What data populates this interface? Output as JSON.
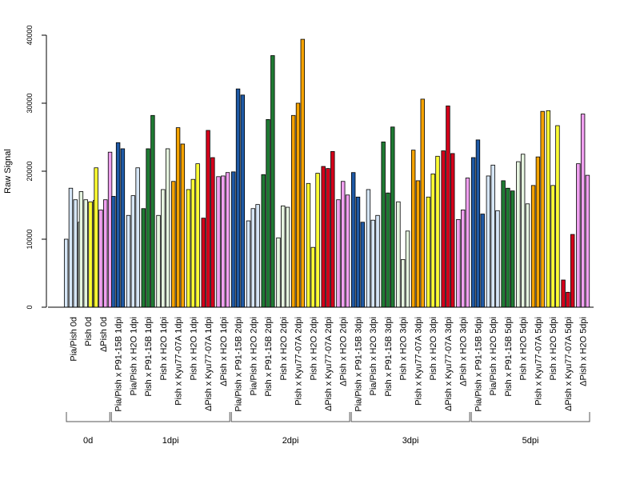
{
  "chart_data": {
    "type": "bar",
    "title": "",
    "xlabel": "",
    "ylabel": "Raw Signal",
    "ylim": [
      0,
      40000
    ],
    "y_ticks": [
      0,
      10000,
      20000,
      30000,
      40000
    ],
    "grid": false,
    "legend": "none",
    "categories": [
      "Pia/Pish 0d",
      "Pish 0d",
      "ΔPish 0d",
      "Pia/Pish x P91-15B 1dpi",
      "Pia/Pish x H2O 1dpi",
      "Pish x P91-15B 1dpi",
      "Pish x H2O 1dpi",
      "Pish x Kyu77-07A 1dpi",
      "Pish x H2O 1dpi",
      "ΔPish x Kyu77-07A 1dpi",
      "ΔPish x H2O 1dpi",
      "Pia/Pish x P91-15B 2dpi",
      "Pia/Pish x H2O 2dpi",
      "Pish x P91-15B 2dpi",
      "Pish x H2O 2dpi",
      "Pish x Kyu77-07A 2dpi",
      "Pish x H2O 2dpi",
      "ΔPish x Kyu77-07A 2dpi",
      "ΔPish x H2O 2dpi",
      "Pia/Pish x P91-15B 3dpi",
      "Pia/Pish x H2O 3dpi",
      "Pish x P91-15B 3dpi",
      "Pish x H2O 3dpi",
      "Pish x Kyu77-07A 3dpi",
      "Pish x H2O 3dpi",
      "ΔPish x Kyu77-07A 3dpi",
      "ΔPish x H2O 3dpi",
      "Pia/Pish x P91-15B 5dpi",
      "Pia/Pish x H2O 5dpi",
      "Pish x P91-15B 5dpi",
      "Pish x H2O 5dpi",
      "Pish x Kyu77-07A 5dpi",
      "Pish x H2O 5dpi",
      "ΔPish x Kyu77-07A 5dpi",
      "ΔPish x H2O 5dpi"
    ],
    "label_colors": {
      "light_blue": "#d6e6f7",
      "dark_blue": "#1f5aa6",
      "light_green": "#e6f5e0",
      "dark_green": "#1f7a33",
      "orange": "#f5a300",
      "yellow": "#ffff33",
      "red": "#d4001b",
      "pink": "#f0a0f0"
    },
    "bars": [
      {
        "value": 10000,
        "color": "light_blue"
      },
      {
        "value": 17500,
        "color": "light_blue"
      },
      {
        "value": 15800,
        "color": "light_blue"
      },
      {
        "value": 12500,
        "color": "light_green"
      },
      {
        "value": 17000,
        "color": "light_green"
      },
      {
        "value": 15800,
        "color": "light_green"
      },
      {
        "value": 15500,
        "color": "yellow"
      },
      {
        "value": 15700,
        "color": "yellow"
      },
      {
        "value": 20500,
        "color": "yellow"
      },
      {
        "value": 14300,
        "color": "pink"
      },
      {
        "value": 15800,
        "color": "pink"
      },
      {
        "value": 22800,
        "color": "pink"
      },
      {
        "value": 16300,
        "color": "dark_blue"
      },
      {
        "value": 24200,
        "color": "dark_blue"
      },
      {
        "value": 23300,
        "color": "dark_blue"
      },
      {
        "value": 13500,
        "color": "light_blue"
      },
      {
        "value": 16400,
        "color": "light_blue"
      },
      {
        "value": 20500,
        "color": "light_blue"
      },
      {
        "value": 14500,
        "color": "dark_green"
      },
      {
        "value": 23300,
        "color": "dark_green"
      },
      {
        "value": 28200,
        "color": "dark_green"
      },
      {
        "value": 13500,
        "color": "light_green"
      },
      {
        "value": 17300,
        "color": "light_green"
      },
      {
        "value": 23300,
        "color": "light_green"
      },
      {
        "value": 18500,
        "color": "orange"
      },
      {
        "value": 26400,
        "color": "orange"
      },
      {
        "value": 24000,
        "color": "orange"
      },
      {
        "value": 17300,
        "color": "yellow"
      },
      {
        "value": 18800,
        "color": "yellow"
      },
      {
        "value": 21100,
        "color": "yellow"
      },
      {
        "value": 13100,
        "color": "red"
      },
      {
        "value": 26000,
        "color": "red"
      },
      {
        "value": 22000,
        "color": "red"
      },
      {
        "value": 19200,
        "color": "pink"
      },
      {
        "value": 19300,
        "color": "pink"
      },
      {
        "value": 19800,
        "color": "pink"
      },
      {
        "value": 19900,
        "color": "dark_blue"
      },
      {
        "value": 32100,
        "color": "dark_blue"
      },
      {
        "value": 31200,
        "color": "dark_blue"
      },
      {
        "value": 12700,
        "color": "light_blue"
      },
      {
        "value": 14500,
        "color": "light_blue"
      },
      {
        "value": 15100,
        "color": "light_blue"
      },
      {
        "value": 19500,
        "color": "dark_green"
      },
      {
        "value": 27600,
        "color": "dark_green"
      },
      {
        "value": 37000,
        "color": "dark_green"
      },
      {
        "value": 10200,
        "color": "light_green"
      },
      {
        "value": 14900,
        "color": "light_green"
      },
      {
        "value": 14700,
        "color": "light_green"
      },
      {
        "value": 28200,
        "color": "orange"
      },
      {
        "value": 30000,
        "color": "orange"
      },
      {
        "value": 39400,
        "color": "orange"
      },
      {
        "value": 18200,
        "color": "yellow"
      },
      {
        "value": 8800,
        "color": "yellow"
      },
      {
        "value": 19700,
        "color": "yellow"
      },
      {
        "value": 20700,
        "color": "red"
      },
      {
        "value": 20400,
        "color": "red"
      },
      {
        "value": 22900,
        "color": "red"
      },
      {
        "value": 15800,
        "color": "pink"
      },
      {
        "value": 18500,
        "color": "pink"
      },
      {
        "value": 16500,
        "color": "pink"
      },
      {
        "value": 19800,
        "color": "dark_blue"
      },
      {
        "value": 16200,
        "color": "dark_blue"
      },
      {
        "value": 12500,
        "color": "dark_blue"
      },
      {
        "value": 17300,
        "color": "light_blue"
      },
      {
        "value": 12800,
        "color": "light_blue"
      },
      {
        "value": 13500,
        "color": "light_blue"
      },
      {
        "value": 24300,
        "color": "dark_green"
      },
      {
        "value": 16800,
        "color": "dark_green"
      },
      {
        "value": 26500,
        "color": "dark_green"
      },
      {
        "value": 15500,
        "color": "light_green"
      },
      {
        "value": 7000,
        "color": "light_green"
      },
      {
        "value": 11200,
        "color": "light_green"
      },
      {
        "value": 23100,
        "color": "orange"
      },
      {
        "value": 18600,
        "color": "orange"
      },
      {
        "value": 30600,
        "color": "orange"
      },
      {
        "value": 16200,
        "color": "yellow"
      },
      {
        "value": 19600,
        "color": "yellow"
      },
      {
        "value": 22200,
        "color": "yellow"
      },
      {
        "value": 23000,
        "color": "red"
      },
      {
        "value": 29600,
        "color": "red"
      },
      {
        "value": 22600,
        "color": "red"
      },
      {
        "value": 12900,
        "color": "pink"
      },
      {
        "value": 14300,
        "color": "pink"
      },
      {
        "value": 19000,
        "color": "pink"
      },
      {
        "value": 22000,
        "color": "dark_blue"
      },
      {
        "value": 24600,
        "color": "dark_blue"
      },
      {
        "value": 13700,
        "color": "dark_blue"
      },
      {
        "value": 19300,
        "color": "light_blue"
      },
      {
        "value": 20900,
        "color": "light_blue"
      },
      {
        "value": 14200,
        "color": "light_blue"
      },
      {
        "value": 18600,
        "color": "dark_green"
      },
      {
        "value": 17500,
        "color": "dark_green"
      },
      {
        "value": 17100,
        "color": "dark_green"
      },
      {
        "value": 21400,
        "color": "light_green"
      },
      {
        "value": 22500,
        "color": "light_green"
      },
      {
        "value": 15200,
        "color": "light_green"
      },
      {
        "value": 17900,
        "color": "orange"
      },
      {
        "value": 22100,
        "color": "orange"
      },
      {
        "value": 28800,
        "color": "orange"
      },
      {
        "value": 28900,
        "color": "yellow"
      },
      {
        "value": 17900,
        "color": "yellow"
      },
      {
        "value": 26700,
        "color": "yellow"
      },
      {
        "value": 4000,
        "color": "red"
      },
      {
        "value": 2200,
        "color": "red"
      },
      {
        "value": 10700,
        "color": "red"
      },
      {
        "value": 21100,
        "color": "pink"
      },
      {
        "value": 28400,
        "color": "pink"
      },
      {
        "value": 19400,
        "color": "pink"
      }
    ],
    "groups": [
      {
        "label": "0d",
        "count": 3
      },
      {
        "label": "1dpi",
        "count": 8
      },
      {
        "label": "2dpi",
        "count": 8
      },
      {
        "label": "3dpi",
        "count": 8
      },
      {
        "label": "5dpi",
        "count": 8
      }
    ]
  }
}
